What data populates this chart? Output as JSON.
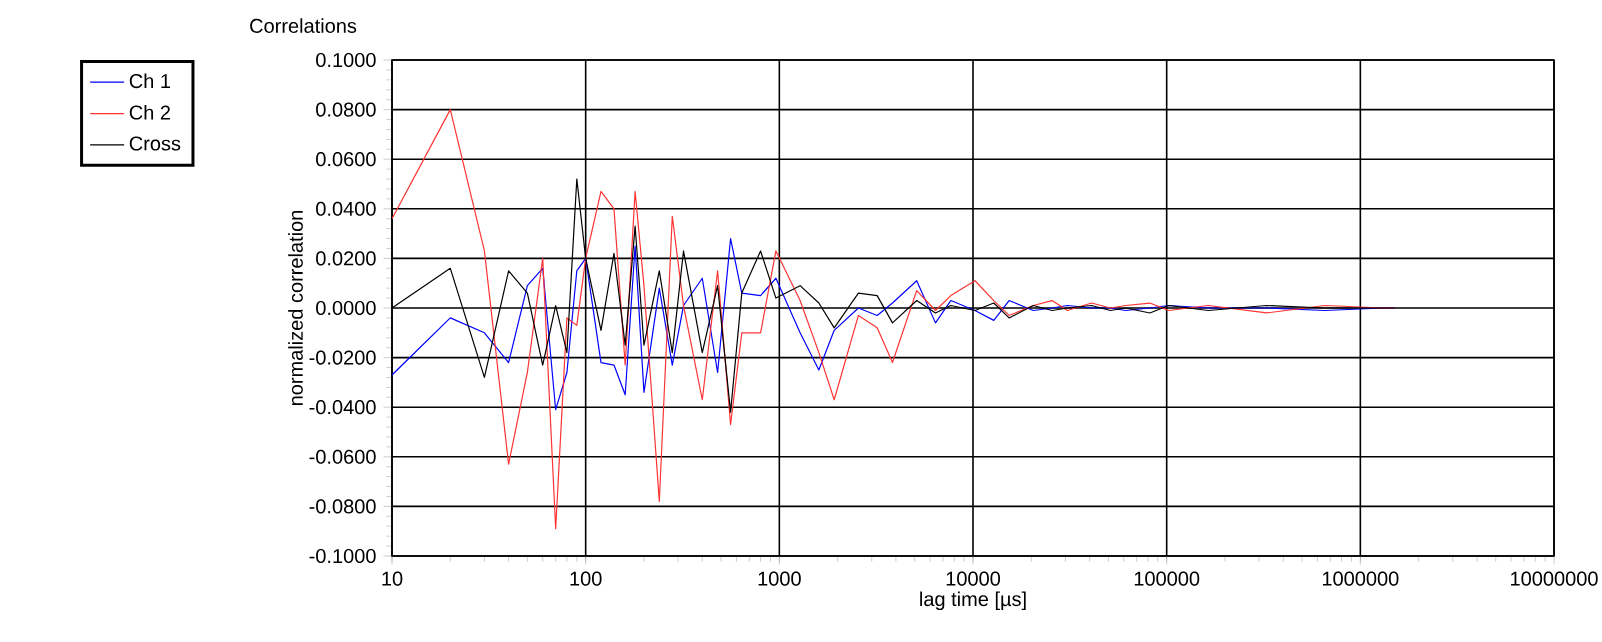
{
  "chart_data": {
    "type": "line",
    "title": "Correlations",
    "xlabel": "lag time [µs]",
    "ylabel": "normalized correlation",
    "log": "x",
    "grid": true,
    "legend": "top left",
    "marker": "none",
    "line_style": "solid",
    "xlim": [
      10,
      10000000
    ],
    "xticks": [
      10,
      100,
      1000,
      10000,
      100000,
      1000000,
      10000000
    ],
    "ylim": [
      -0.1,
      0.1
    ],
    "yticks": [
      {
        "value": -0.1,
        "label": "-0.1000"
      },
      {
        "value": -0.08,
        "label": "-0.0800"
      },
      {
        "value": -0.06,
        "label": "-0.0600"
      },
      {
        "value": -0.04,
        "label": "-0.0400"
      },
      {
        "value": -0.02,
        "label": "-0.0200"
      },
      {
        "value": 0,
        "label": "0.0000"
      },
      {
        "value": 0.02,
        "label": "0.0200"
      },
      {
        "value": 0.04,
        "label": "0.0400"
      },
      {
        "value": 0.06,
        "label": "0.0600"
      },
      {
        "value": 0.08,
        "label": "0.0800"
      },
      {
        "value": 0.1,
        "label": "0.1000"
      }
    ],
    "x": [
      10,
      20,
      30,
      40,
      50,
      60,
      70,
      80,
      90,
      100,
      120,
      140,
      160,
      180,
      200,
      240,
      280,
      320,
      400,
      480,
      560,
      640,
      800,
      960,
      1280,
      1600,
      1920,
      2560,
      3200,
      3840,
      5120,
      6400,
      7680,
      10240,
      12800,
      15360,
      20480,
      25600,
      30720,
      40960,
      51200,
      61440,
      81920,
      102400,
      163840,
      327680,
      655360,
      1310720,
      1500000
    ],
    "series": [
      {
        "name": "Ch 1",
        "color": "#0000ff",
        "values": [
          -0.027,
          -0.004,
          -0.01,
          -0.022,
          0.009,
          0.016,
          -0.041,
          -0.026,
          0.015,
          0.02,
          -0.022,
          -0.023,
          -0.035,
          0.025,
          -0.034,
          0.008,
          -0.023,
          0.001,
          0.012,
          -0.026,
          0.028,
          0.006,
          0.005,
          0.012,
          -0.01,
          -0.025,
          -0.009,
          0.0,
          -0.003,
          0.002,
          0.011,
          -0.006,
          0.003,
          -0.001,
          -0.005,
          0.003,
          -0.001,
          0.0,
          0.001,
          0.0,
          0.0,
          -0.001,
          0.0,
          0.001,
          0.0,
          0.0,
          -0.001,
          0.0,
          0.0
        ]
      },
      {
        "name": "Ch 2",
        "color": "#ff3333",
        "values": [
          0.036,
          0.08,
          0.023,
          -0.063,
          -0.026,
          0.02,
          -0.089,
          -0.004,
          -0.007,
          0.02,
          0.047,
          0.04,
          -0.023,
          0.047,
          0.009,
          -0.078,
          0.037,
          0.001,
          -0.037,
          0.015,
          -0.047,
          -0.01,
          -0.01,
          0.023,
          0.003,
          -0.018,
          -0.037,
          -0.003,
          -0.008,
          -0.022,
          0.007,
          -0.001,
          0.005,
          0.011,
          0.003,
          -0.003,
          0.001,
          0.003,
          -0.001,
          0.002,
          0.0,
          0.001,
          0.002,
          -0.001,
          0.001,
          -0.002,
          0.001,
          0.0,
          0.0
        ]
      },
      {
        "name": "Cross",
        "color": "#000000",
        "values": [
          0.0,
          0.016,
          -0.028,
          0.015,
          0.006,
          -0.023,
          0.001,
          -0.018,
          0.052,
          0.02,
          -0.009,
          0.022,
          -0.015,
          0.033,
          -0.015,
          0.015,
          -0.018,
          0.023,
          -0.018,
          0.009,
          -0.042,
          0.006,
          0.023,
          0.004,
          0.009,
          0.002,
          -0.008,
          0.006,
          0.005,
          -0.006,
          0.003,
          -0.002,
          0.001,
          -0.001,
          0.002,
          -0.004,
          0.001,
          -0.001,
          0.0,
          0.001,
          -0.001,
          0.0,
          -0.002,
          0.001,
          -0.001,
          0.001,
          0.0,
          0.0,
          0.0
        ]
      }
    ]
  }
}
